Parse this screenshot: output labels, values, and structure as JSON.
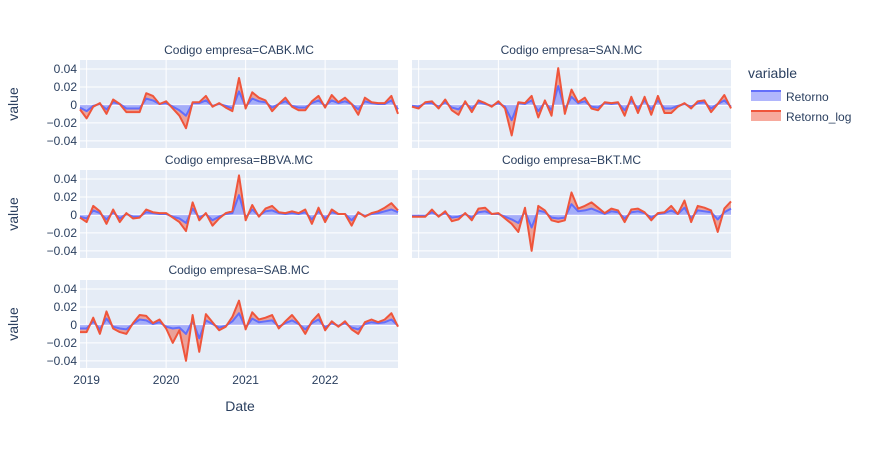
{
  "colors": {
    "plot_bg": "#E5ECF6",
    "grid": "#ffffff",
    "text": "#2a3f5f",
    "retorno_line": "#636EFA",
    "retorno_fill": "#636EFA",
    "retorno_log_line": "#EF553B",
    "retorno_log_fill": "#EF553B"
  },
  "chart_data": {
    "type": "area",
    "title": "",
    "xlabel": "Date",
    "ylabel": "value",
    "ylim": [
      -0.048,
      0.05
    ],
    "yticks": [
      0.04,
      0.02,
      0,
      -0.02,
      -0.04
    ],
    "ytick_labels": [
      "0.04",
      "0.02",
      "0",
      "−0.02",
      "−0.04"
    ],
    "xticks": [
      "2019",
      "2020",
      "2021",
      "2022"
    ],
    "x_start": "2018-12",
    "x_end": "2022-12",
    "x_freq": "monthly",
    "legend": {
      "title": "variable",
      "placement": "top-right",
      "entries": [
        "Retorno",
        "Retorno_log"
      ]
    },
    "facet_labels": [
      "Codigo empresa=CABK.MC",
      "Codigo empresa=SAN.MC",
      "Codigo empresa=BBVA.MC",
      "Codigo empresa=BKT.MC",
      "Codigo empresa=SAB.MC"
    ],
    "panels": [
      {
        "label": "Codigo empresa=CABK.MC",
        "retorno": [
          -0.003,
          -0.007,
          -0.001,
          0.001,
          -0.005,
          0.003,
          0.001,
          -0.004,
          -0.004,
          -0.004,
          0.007,
          0.005,
          0.001,
          0.002,
          -0.002,
          -0.006,
          -0.012,
          0.002,
          0.002,
          0.005,
          -0.001,
          0.001,
          -0.001,
          -0.004,
          0.015,
          -0.002,
          0.007,
          0.004,
          0.003,
          -0.003,
          0.001,
          0.004,
          -0.001,
          -0.003,
          -0.003,
          0.002,
          0.005,
          -0.001,
          0.005,
          0.002,
          0.004,
          0.001,
          -0.005,
          0.004,
          0.002,
          0.001,
          0.001,
          0.005,
          -0.005
        ],
        "retorno_log": [
          -0.005,
          -0.015,
          -0.002,
          0.002,
          -0.01,
          0.006,
          0.001,
          -0.008,
          -0.008,
          -0.008,
          0.013,
          0.01,
          0.001,
          0.004,
          -0.004,
          -0.012,
          -0.026,
          0.003,
          0.003,
          0.01,
          -0.002,
          0.002,
          -0.003,
          -0.007,
          0.03,
          -0.004,
          0.014,
          0.008,
          0.005,
          -0.007,
          0.001,
          0.008,
          -0.002,
          -0.006,
          -0.006,
          0.004,
          0.01,
          -0.003,
          0.011,
          0.003,
          0.008,
          0.001,
          -0.011,
          0.008,
          0.003,
          0.002,
          0.002,
          0.01,
          -0.01
        ]
      },
      {
        "label": "Codigo empresa=SAN.MC",
        "retorno": [
          -0.001,
          -0.002,
          0.002,
          0.002,
          -0.002,
          0.003,
          -0.003,
          -0.005,
          0.002,
          -0.004,
          0.003,
          0.001,
          -0.001,
          0.002,
          -0.002,
          -0.017,
          0.002,
          0.001,
          0.005,
          -0.007,
          0.003,
          -0.006,
          0.021,
          -0.005,
          0.009,
          0.002,
          0.004,
          -0.002,
          -0.003,
          0.002,
          0.001,
          0.002,
          -0.006,
          0.005,
          -0.004,
          0.005,
          -0.005,
          0.005,
          -0.004,
          -0.004,
          -0.001,
          0.001,
          -0.002,
          0.002,
          0.003,
          -0.004,
          0.001,
          0.005,
          -0.002
        ],
        "retorno_log": [
          -0.002,
          -0.004,
          0.003,
          0.004,
          -0.004,
          0.006,
          -0.006,
          -0.011,
          0.004,
          -0.008,
          0.005,
          0.002,
          -0.002,
          0.004,
          -0.004,
          -0.034,
          0.003,
          0.002,
          0.01,
          -0.014,
          0.005,
          -0.012,
          0.041,
          -0.01,
          0.017,
          0.003,
          0.008,
          -0.004,
          -0.006,
          0.003,
          0.002,
          0.003,
          -0.012,
          0.009,
          -0.009,
          0.009,
          -0.011,
          0.01,
          -0.009,
          -0.009,
          -0.002,
          0.002,
          -0.004,
          0.004,
          0.005,
          -0.008,
          0.001,
          0.011,
          -0.004
        ]
      },
      {
        "label": "Codigo empresa=BBVA.MC",
        "retorno": [
          -0.002,
          -0.004,
          0.005,
          0.002,
          -0.005,
          0.003,
          -0.004,
          0.001,
          -0.002,
          -0.002,
          0.003,
          0.002,
          0.001,
          0.001,
          -0.002,
          -0.004,
          -0.009,
          0.007,
          -0.003,
          0.001,
          -0.006,
          -0.002,
          0.001,
          0.002,
          0.022,
          -0.003,
          0.006,
          -0.001,
          0.004,
          0.005,
          0.002,
          0.001,
          0.002,
          0.001,
          0.003,
          -0.005,
          0.004,
          -0.004,
          0.003,
          0.001,
          0.001,
          -0.006,
          0.002,
          -0.001,
          0.001,
          0.002,
          0.004,
          0.006,
          0.003
        ],
        "retorno_log": [
          -0.003,
          -0.008,
          0.01,
          0.004,
          -0.01,
          0.006,
          -0.008,
          0.002,
          -0.004,
          -0.003,
          0.006,
          0.003,
          0.002,
          0.002,
          -0.003,
          -0.008,
          -0.018,
          0.014,
          -0.006,
          0.002,
          -0.012,
          -0.004,
          0.002,
          0.004,
          0.044,
          -0.006,
          0.011,
          -0.002,
          0.007,
          0.01,
          0.003,
          0.002,
          0.004,
          0.002,
          0.006,
          -0.01,
          0.008,
          -0.008,
          0.006,
          0.001,
          0.001,
          -0.012,
          0.003,
          -0.002,
          0.002,
          0.004,
          0.008,
          0.013,
          0.005
        ]
      },
      {
        "label": "Codigo empresa=BKT.MC",
        "retorno": [
          -0.001,
          -0.001,
          -0.001,
          0.003,
          -0.001,
          0.002,
          -0.003,
          -0.002,
          0.001,
          -0.003,
          0.003,
          0.004,
          0.001,
          0.001,
          -0.002,
          -0.005,
          -0.009,
          0.004,
          -0.014,
          0.005,
          0.003,
          -0.003,
          -0.004,
          -0.003,
          0.012,
          0.004,
          0.005,
          0.007,
          0.004,
          0.001,
          0.004,
          0.003,
          -0.004,
          0.003,
          0.004,
          0.002,
          -0.003,
          0.001,
          0.002,
          0.005,
          0.001,
          0.008,
          -0.004,
          0.005,
          0.004,
          0.003,
          -0.005,
          0.003,
          0.007
        ],
        "retorno_log": [
          -0.002,
          -0.002,
          -0.002,
          0.006,
          -0.002,
          0.004,
          -0.007,
          -0.005,
          0.002,
          -0.006,
          0.007,
          0.008,
          0.001,
          0.002,
          -0.004,
          -0.01,
          -0.019,
          0.008,
          -0.04,
          0.01,
          0.005,
          -0.006,
          -0.008,
          -0.006,
          0.025,
          0.007,
          0.01,
          0.014,
          0.008,
          0.002,
          0.007,
          0.005,
          -0.008,
          0.006,
          0.007,
          0.003,
          -0.006,
          0.002,
          0.003,
          0.01,
          0.001,
          0.016,
          -0.008,
          0.01,
          0.008,
          0.005,
          -0.019,
          0.007,
          0.015
        ]
      },
      {
        "label": "Codigo empresa=SAB.MC",
        "retorno": [
          -0.004,
          -0.004,
          0.004,
          -0.005,
          0.007,
          -0.002,
          -0.004,
          -0.005,
          0.001,
          0.006,
          0.005,
          0.001,
          0.003,
          -0.002,
          -0.004,
          -0.003,
          -0.01,
          0.005,
          -0.015,
          0.005,
          0.001,
          -0.003,
          -0.001,
          0.004,
          0.013,
          -0.003,
          0.007,
          0.003,
          0.004,
          0.005,
          -0.002,
          0.002,
          0.005,
          0.001,
          -0.005,
          0.002,
          0.006,
          -0.003,
          0.002,
          -0.001,
          0.002,
          -0.003,
          -0.005,
          0.001,
          0.003,
          0.002,
          0.003,
          0.006,
          -0.001
        ],
        "retorno_log": [
          -0.008,
          -0.008,
          0.008,
          -0.01,
          0.015,
          -0.004,
          -0.008,
          -0.01,
          0.002,
          0.011,
          0.01,
          0.002,
          0.006,
          -0.004,
          -0.02,
          -0.006,
          -0.04,
          0.011,
          -0.03,
          0.012,
          0.003,
          -0.006,
          -0.002,
          0.009,
          0.027,
          -0.005,
          0.014,
          0.006,
          0.008,
          0.011,
          -0.004,
          0.004,
          0.011,
          0.002,
          -0.01,
          0.004,
          0.012,
          -0.006,
          0.004,
          -0.002,
          0.004,
          -0.005,
          -0.01,
          0.003,
          0.006,
          0.003,
          0.006,
          0.013,
          -0.002
        ]
      }
    ]
  }
}
